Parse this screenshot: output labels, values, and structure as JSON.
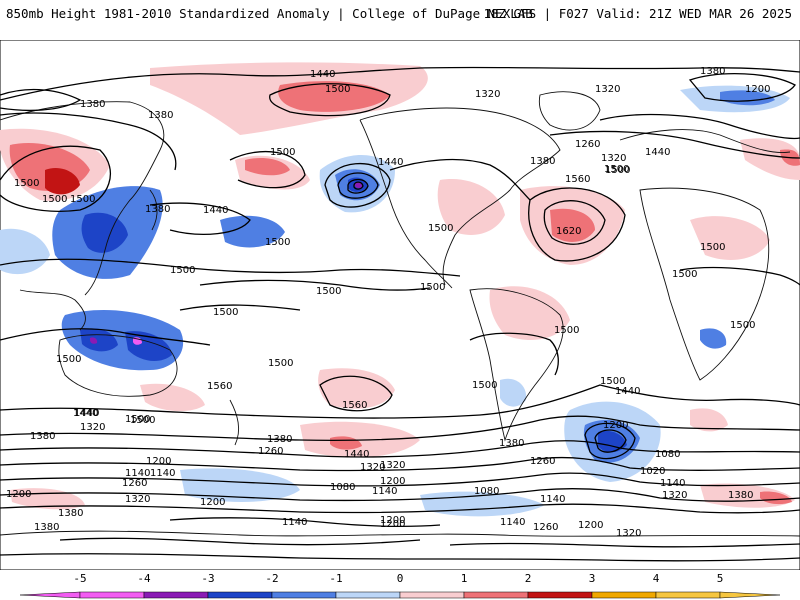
{
  "header": {
    "title": "850mb Height 1981-2010 Standardized Anomaly | College of DuPage NEXLAB",
    "run_info": "18Z GFS | F027 Valid: 21Z WED MAR 26 2025"
  },
  "colors": {
    "neg5": "#f25cf2",
    "neg4": "#8a1ab4",
    "neg3": "#1d44c7",
    "neg2": "#4f7fe3",
    "neg1": "#bcd6f7",
    "pos1": "#f9cdd0",
    "pos2": "#ee7277",
    "pos3": "#c21414",
    "pos4": "#f0a800",
    "pos5": "#f6c640",
    "coast": "#111111"
  },
  "colorbar": {
    "ticks": [
      "-5",
      "-4",
      "-3",
      "-2",
      "-1",
      "0",
      "1",
      "2",
      "3",
      "4",
      "5"
    ]
  },
  "contour_labels": [
    "1440",
    "1500",
    "1380",
    "1380",
    "1320",
    "1380",
    "1200",
    "1500",
    "1440",
    "1500",
    "1500",
    "1440",
    "1500",
    "1500",
    "1380",
    "1500",
    "1380",
    "1500",
    "1320",
    "1260",
    "1320",
    "1500",
    "1560",
    "1440",
    "1620",
    "1500",
    "1500",
    "1500",
    "1500",
    "1500",
    "1500",
    "1500",
    "1560",
    "1500",
    "1500",
    "1500",
    "1500",
    "1440",
    "1320",
    "1500",
    "1560",
    "1380",
    "1380",
    "1260",
    "1440",
    "1320",
    "1380",
    "1200",
    "1020",
    "1080",
    "1260",
    "1200",
    "1140",
    "1140",
    "1260",
    "1200",
    "1320",
    "1080",
    "1200",
    "1080",
    "1140",
    "1140",
    "1140",
    "1200",
    "1320",
    "1380",
    "1320",
    "1380",
    "1200",
    "1380",
    "1140",
    "1260",
    "1200",
    "1320",
    "1200",
    "1140",
    "1500",
    "1440",
    "1440",
    "1500"
  ]
}
